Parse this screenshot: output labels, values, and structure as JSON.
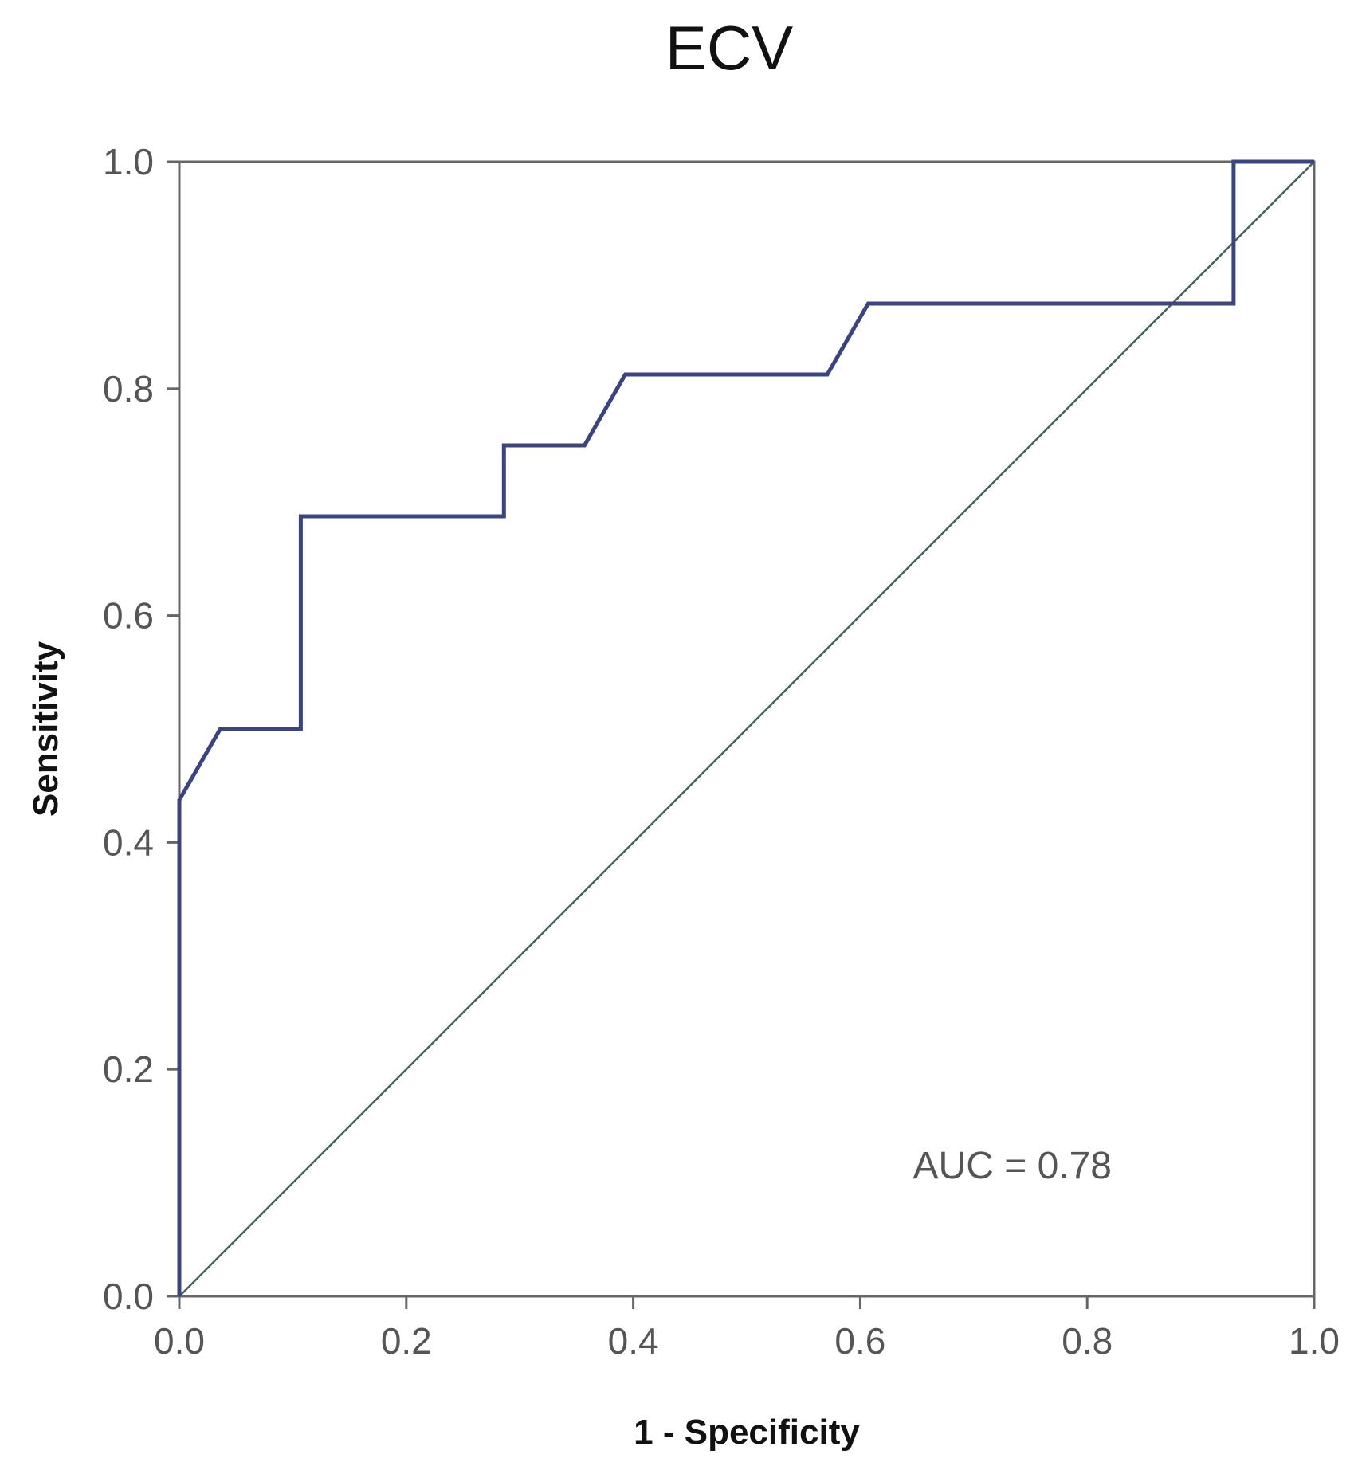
{
  "chart_data": {
    "type": "line",
    "title": "ECV",
    "xlabel": "1 - Specificity",
    "ylabel": "Sensitivity",
    "xlim": [
      0.0,
      1.0
    ],
    "ylim": [
      0.0,
      1.0
    ],
    "x_ticks": [
      "0.0",
      "0.2",
      "0.4",
      "0.6",
      "0.8",
      "1.0"
    ],
    "y_ticks": [
      "0.0",
      "0.2",
      "0.4",
      "0.6",
      "0.8",
      "1.0"
    ],
    "grid": false,
    "annotation": "AUC = 0.78",
    "colors": {
      "roc": "#3a4580",
      "reference": "#4a6060",
      "frame": "#666666"
    },
    "series": [
      {
        "x": [
          0.0,
          0.0,
          0.036,
          0.107,
          0.107,
          0.286,
          0.286,
          0.357,
          0.393,
          0.571,
          0.607,
          0.929,
          0.929,
          1.0
        ],
        "y": [
          0.0,
          0.4375,
          0.5,
          0.5,
          0.6875,
          0.6875,
          0.75,
          0.75,
          0.8125,
          0.8125,
          0.875,
          0.875,
          1.0,
          1.0
        ]
      }
    ],
    "reference_line": {
      "x": [
        0.0,
        1.0
      ],
      "y": [
        0.0,
        1.0
      ]
    }
  }
}
